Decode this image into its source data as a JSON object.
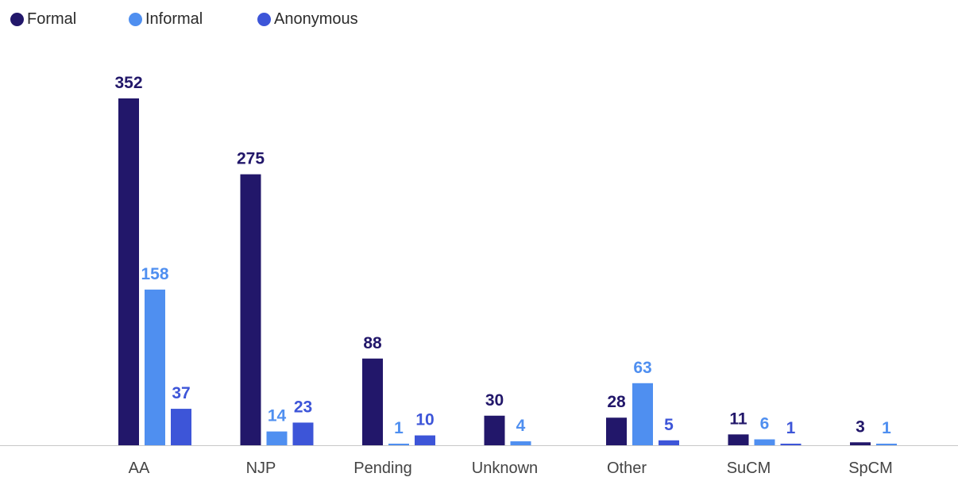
{
  "chart_data": {
    "type": "bar",
    "categories": [
      "AA",
      "NJP",
      "Pending",
      "Unknown",
      "Other",
      "SuCM",
      "SpCM"
    ],
    "series": [
      {
        "name": "Formal",
        "color": "#22176a",
        "values": [
          352,
          275,
          88,
          30,
          28,
          11,
          3
        ]
      },
      {
        "name": "Informal",
        "color": "#4f8ff0",
        "values": [
          158,
          14,
          1,
          4,
          63,
          6,
          1
        ]
      },
      {
        "name": "Anonymous",
        "color": "#3d55d8",
        "values": [
          37,
          23,
          10,
          null,
          5,
          1,
          null
        ]
      }
    ],
    "title": "",
    "xlabel": "",
    "ylabel": "",
    "ylim": [
      0,
      352
    ],
    "grid": false,
    "legend_position": "top-left"
  }
}
